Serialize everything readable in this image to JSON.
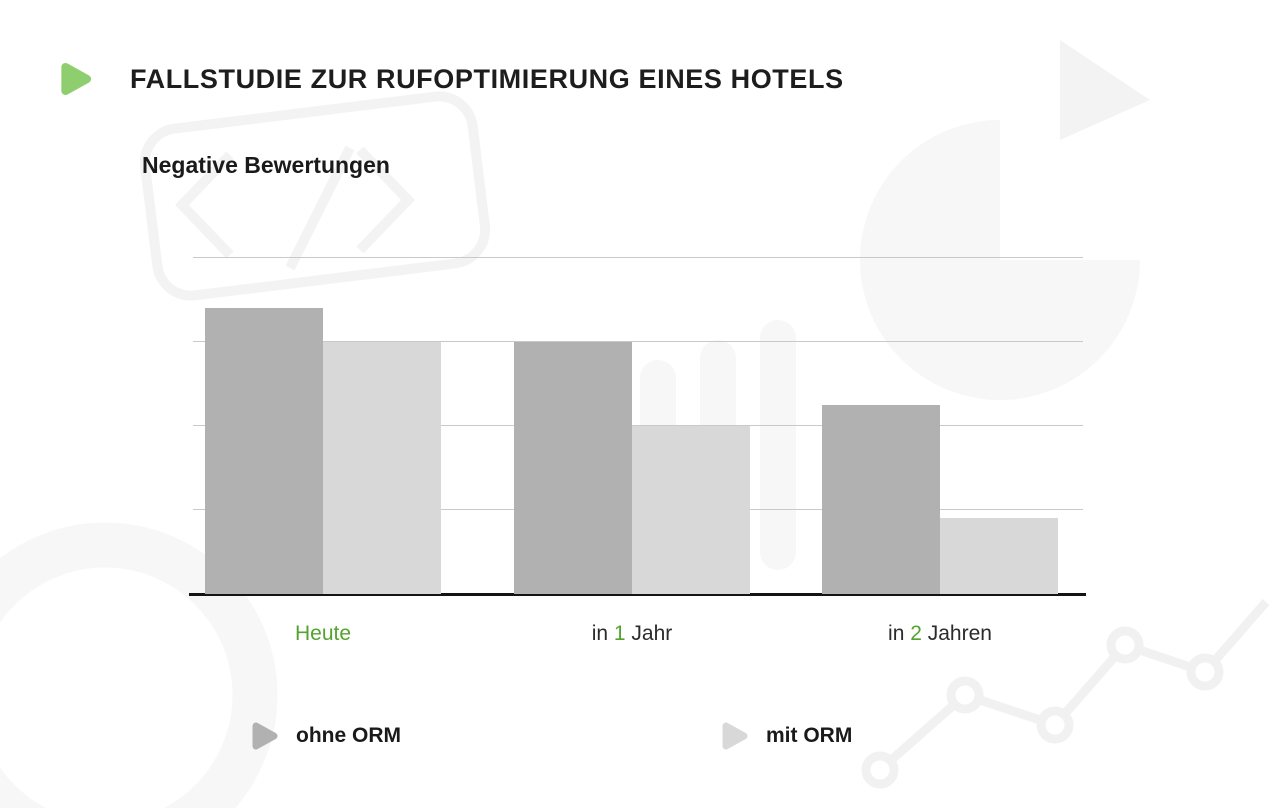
{
  "page": {
    "title": "FALLSTUDIE ZUR RUFOPTIMIERUNG EINES HOTELS",
    "chart_title": "Negative Bewertungen"
  },
  "colors": {
    "accent_green": "#54a32f",
    "icon_green": "#8fce6e",
    "bar_dark": "#b1b1b1",
    "bar_light": "#d8d8d8",
    "axis": "#141414",
    "gridline": "#c9c9c9"
  },
  "legend": [
    {
      "label": "ohne ORM",
      "color": "#b1b1b1"
    },
    {
      "label": "mit ORM",
      "color": "#d8d8d8"
    }
  ],
  "x_labels": [
    {
      "parts": [
        {
          "text": "Heute",
          "green": true
        }
      ]
    },
    {
      "parts": [
        {
          "text": "in ",
          "green": false
        },
        {
          "text": "1",
          "green": true
        },
        {
          "text": " Jahr",
          "green": false
        }
      ]
    },
    {
      "parts": [
        {
          "text": "in ",
          "green": false
        },
        {
          "text": "2",
          "green": true
        },
        {
          "text": " Jahren",
          "green": false
        }
      ]
    }
  ],
  "chart_data": {
    "type": "bar",
    "title": "Negative Bewertungen",
    "categories": [
      "Heute",
      "in 1 Jahr",
      "in 2 Jahren"
    ],
    "series": [
      {
        "name": "ohne ORM",
        "values": [
          3.4,
          3.0,
          2.25
        ]
      },
      {
        "name": "mit ORM",
        "values": [
          3.0,
          2.0,
          0.9
        ]
      }
    ],
    "ylim": [
      0,
      5
    ],
    "gridlines": [
      1,
      2,
      3,
      4
    ],
    "y_axis_labels_visible": false,
    "grid": true,
    "legend_position": "bottom"
  }
}
